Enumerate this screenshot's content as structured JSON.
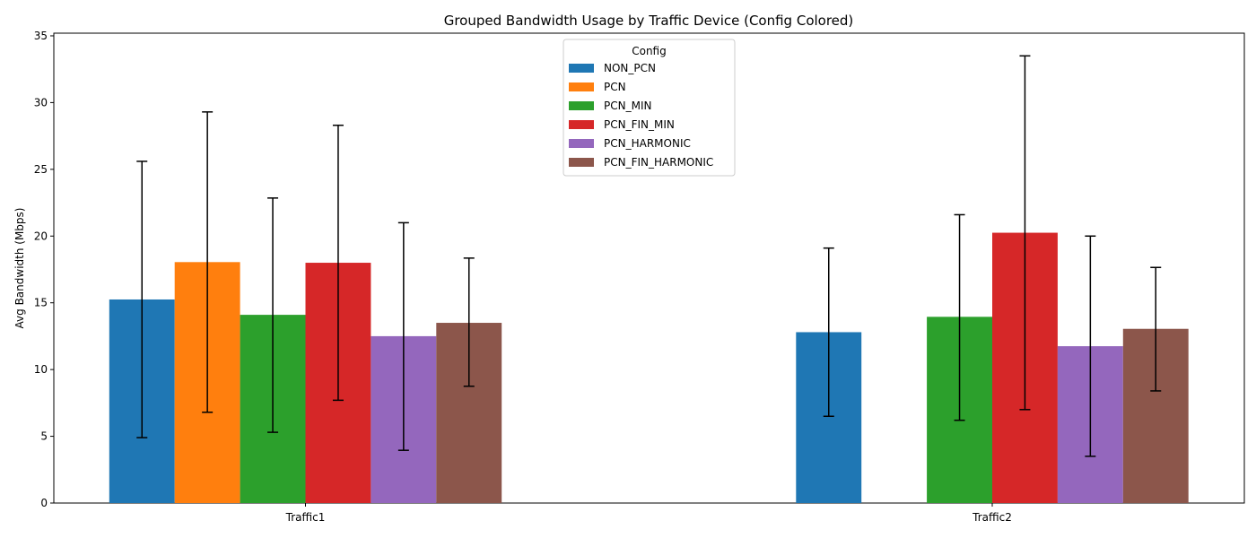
{
  "chart_data": {
    "type": "bar",
    "title": "Grouped Bandwidth Usage by Traffic Device (Config Colored)",
    "xlabel": "",
    "ylabel": "Avg Bandwidth (Mbps)",
    "categories": [
      "Traffic1",
      "Traffic2"
    ],
    "ylim": [
      0,
      35.2
    ],
    "yticks": [
      0,
      5,
      10,
      15,
      20,
      25,
      30,
      35
    ],
    "grid": false,
    "legend": {
      "title": "Config",
      "placement": "top-center"
    },
    "series": [
      {
        "name": "NON_PCN",
        "color": "#1f77b4",
        "values": [
          15.25,
          12.8
        ],
        "err_low": [
          4.9,
          6.5
        ],
        "err_high": [
          25.6,
          19.1
        ]
      },
      {
        "name": "PCN",
        "color": "#ff7f0e",
        "values": [
          18.05,
          null
        ],
        "err_low": [
          6.8,
          null
        ],
        "err_high": [
          29.3,
          null
        ]
      },
      {
        "name": "PCN_MIN",
        "color": "#2ca02c",
        "values": [
          14.1,
          13.95
        ],
        "err_low": [
          5.3,
          6.2
        ],
        "err_high": [
          22.85,
          21.6
        ]
      },
      {
        "name": "PCN_FIN_MIN",
        "color": "#d62728",
        "values": [
          18.0,
          20.25
        ],
        "err_low": [
          7.7,
          7.0
        ],
        "err_high": [
          28.3,
          33.5
        ]
      },
      {
        "name": "PCN_HARMONIC",
        "color": "#9467bd",
        "values": [
          12.5,
          11.75
        ],
        "err_low": [
          3.95,
          3.5
        ],
        "err_high": [
          21.0,
          20.0
        ]
      },
      {
        "name": "PCN_FIN_HARMONIC",
        "color": "#8c564b",
        "values": [
          13.5,
          13.05
        ],
        "err_low": [
          8.75,
          8.4
        ],
        "err_high": [
          18.35,
          17.65
        ]
      }
    ]
  }
}
